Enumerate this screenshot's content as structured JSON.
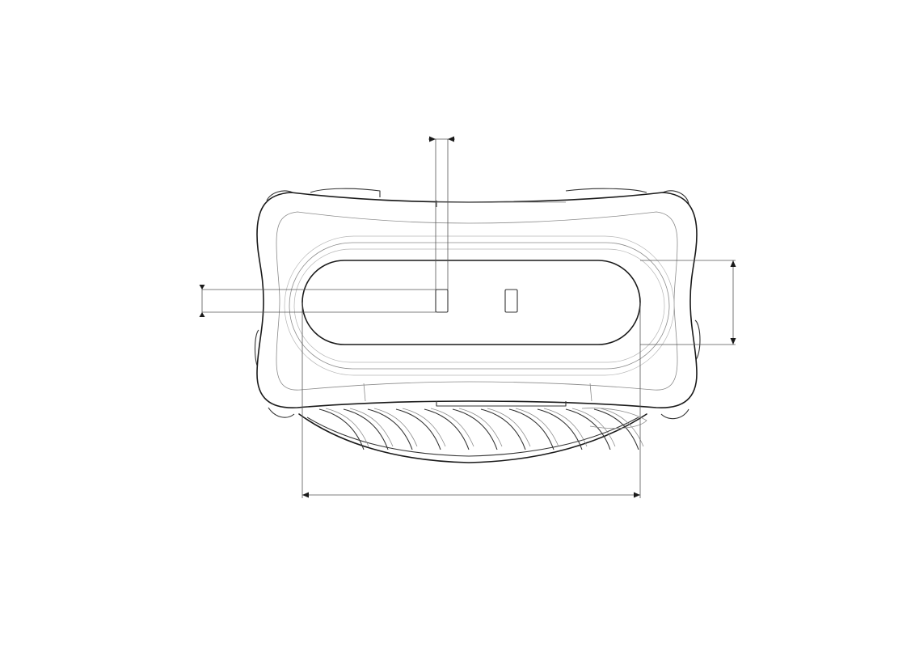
{
  "drawing": {
    "kind": "technical line drawing",
    "colors": {
      "line": "#1a1a1a",
      "construction": "#8a8a8a",
      "background": "#ffffff"
    },
    "dimensions": [
      {
        "name": "pin-spacing-dimension",
        "orientation": "horizontal",
        "label": ""
      },
      {
        "name": "slot-height-dimension",
        "orientation": "vertical",
        "label": ""
      },
      {
        "name": "panel-height-dimension",
        "orientation": "vertical",
        "label": ""
      },
      {
        "name": "slot-width-dimension",
        "orientation": "horizontal",
        "label": ""
      }
    ]
  }
}
